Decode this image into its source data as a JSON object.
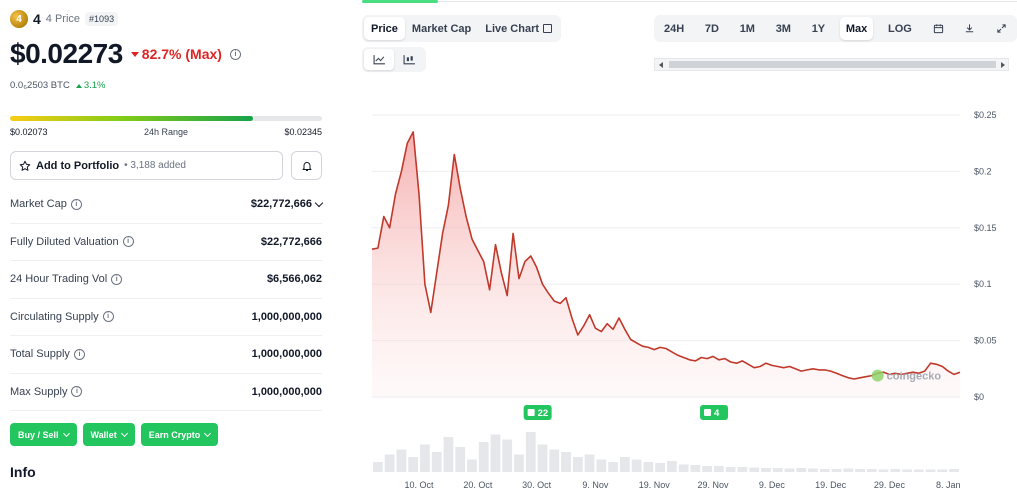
{
  "coin": {
    "logo_letter": "4",
    "name": "4",
    "sub": "4 Price",
    "rank": "#1093",
    "price": "$0.02273",
    "change": "82.7% (Max)",
    "btc_price": "0.0₆2503 BTC",
    "btc_change": "3.1%"
  },
  "range": {
    "low": "$0.02073",
    "label": "24h Range",
    "high": "$0.02345",
    "position_pct": 78
  },
  "portfolio": {
    "label": "Add to Portfolio",
    "count": "• 3,188 added"
  },
  "stats": [
    {
      "label": "Market Cap",
      "value": "$22,772,666"
    },
    {
      "label": "Fully Diluted Valuation",
      "value": "$22,772,666"
    },
    {
      "label": "24 Hour Trading Vol",
      "value": "$6,566,062"
    },
    {
      "label": "Circulating Supply",
      "value": "1,000,000,000"
    },
    {
      "label": "Total Supply",
      "value": "1,000,000,000"
    },
    {
      "label": "Max Supply",
      "value": "1,000,000,000"
    }
  ],
  "actions": [
    "Buy / Sell",
    "Wallet",
    "Earn Crypto"
  ],
  "info_heading": "Info",
  "chart_tabs": [
    "Price",
    "Market Cap",
    "Live Chart"
  ],
  "range_tabs": [
    "24H",
    "7D",
    "1M",
    "3M",
    "1Y",
    "Max",
    "LOG"
  ],
  "active_range": "Max",
  "colors": {
    "accent_green": "#22c55e",
    "down_red": "#dc2626",
    "line_red": "#c0392b"
  },
  "chart_data": {
    "type": "area",
    "title": "",
    "xlabel": "",
    "ylabel": "",
    "ylim": [
      0,
      0.25
    ],
    "y_ticks": [
      "$0.25",
      "$0.2",
      "$0.15",
      "$0.1",
      "$0.05",
      "$0"
    ],
    "y_tick_values": [
      0.25,
      0.2,
      0.15,
      0.1,
      0.05,
      0
    ],
    "x_ticks": [
      "10. Oct",
      "20. Oct",
      "30. Oct",
      "9. Nov",
      "19. Nov",
      "29. Nov",
      "9. Dec",
      "19. Dec",
      "29. Dec",
      "8. Jan"
    ],
    "x_tick_days": [
      10,
      20,
      30,
      40,
      50,
      60,
      70,
      80,
      90,
      100
    ],
    "x_range_days": [
      2,
      102
    ],
    "series": [
      {
        "values": [
          [
            2,
            0.131
          ],
          [
            3,
            0.132
          ],
          [
            4,
            0.16
          ],
          [
            5,
            0.15
          ],
          [
            6,
            0.18
          ],
          [
            7,
            0.2
          ],
          [
            8,
            0.225
          ],
          [
            9,
            0.235
          ],
          [
            10,
            0.18
          ],
          [
            11,
            0.1
          ],
          [
            12,
            0.075
          ],
          [
            13,
            0.11
          ],
          [
            14,
            0.145
          ],
          [
            15,
            0.17
          ],
          [
            16,
            0.215
          ],
          [
            17,
            0.185
          ],
          [
            18,
            0.16
          ],
          [
            19,
            0.14
          ],
          [
            20,
            0.13
          ],
          [
            21,
            0.12
          ],
          [
            22,
            0.095
          ],
          [
            23,
            0.135
          ],
          [
            24,
            0.11
          ],
          [
            25,
            0.09
          ],
          [
            26,
            0.145
          ],
          [
            27,
            0.105
          ],
          [
            28,
            0.12
          ],
          [
            29,
            0.125
          ],
          [
            30,
            0.115
          ],
          [
            31,
            0.1
          ],
          [
            32,
            0.092
          ],
          [
            33,
            0.085
          ],
          [
            34,
            0.083
          ],
          [
            35,
            0.088
          ],
          [
            36,
            0.07
          ],
          [
            37,
            0.055
          ],
          [
            38,
            0.063
          ],
          [
            39,
            0.073
          ],
          [
            40,
            0.061
          ],
          [
            41,
            0.058
          ],
          [
            42,
            0.065
          ],
          [
            43,
            0.06
          ],
          [
            44,
            0.07
          ],
          [
            45,
            0.06
          ],
          [
            46,
            0.051
          ],
          [
            47,
            0.048
          ],
          [
            48,
            0.045
          ],
          [
            49,
            0.044
          ],
          [
            50,
            0.042
          ],
          [
            51,
            0.044
          ],
          [
            52,
            0.043
          ],
          [
            53,
            0.04
          ],
          [
            54,
            0.037
          ],
          [
            55,
            0.035
          ],
          [
            56,
            0.033
          ],
          [
            57,
            0.032
          ],
          [
            58,
            0.035
          ],
          [
            59,
            0.034
          ],
          [
            60,
            0.036
          ],
          [
            61,
            0.033
          ],
          [
            62,
            0.034
          ],
          [
            63,
            0.031
          ],
          [
            64,
            0.03
          ],
          [
            65,
            0.032
          ],
          [
            66,
            0.029
          ],
          [
            67,
            0.026
          ],
          [
            68,
            0.027
          ],
          [
            69,
            0.03
          ],
          [
            70,
            0.028
          ],
          [
            71,
            0.027
          ],
          [
            72,
            0.026
          ],
          [
            73,
            0.027
          ],
          [
            74,
            0.025
          ],
          [
            75,
            0.023
          ],
          [
            76,
            0.024
          ],
          [
            77,
            0.025
          ],
          [
            78,
            0.024
          ],
          [
            79,
            0.024
          ],
          [
            80,
            0.023
          ],
          [
            81,
            0.021
          ],
          [
            82,
            0.019
          ],
          [
            83,
            0.017
          ],
          [
            84,
            0.016
          ],
          [
            85,
            0.017
          ],
          [
            86,
            0.018
          ],
          [
            87,
            0.019
          ],
          [
            88,
            0.021
          ],
          [
            89,
            0.022
          ],
          [
            90,
            0.02
          ],
          [
            91,
            0.021
          ],
          [
            92,
            0.02
          ],
          [
            93,
            0.021
          ],
          [
            94,
            0.022
          ],
          [
            95,
            0.021
          ],
          [
            96,
            0.023
          ],
          [
            97,
            0.03
          ],
          [
            98,
            0.029
          ],
          [
            99,
            0.027
          ],
          [
            100,
            0.023
          ],
          [
            101,
            0.02
          ],
          [
            102,
            0.022
          ]
        ]
      }
    ],
    "event_markers": [
      {
        "day": 30,
        "label": "22"
      },
      {
        "day": 60,
        "label": "4"
      }
    ],
    "volume": [
      0.2,
      0.35,
      0.45,
      0.3,
      0.55,
      0.4,
      0.7,
      0.5,
      0.25,
      0.6,
      0.75,
      0.65,
      0.35,
      0.8,
      0.55,
      0.45,
      0.4,
      0.3,
      0.35,
      0.25,
      0.2,
      0.3,
      0.25,
      0.2,
      0.18,
      0.22,
      0.15,
      0.14,
      0.12,
      0.12,
      0.1,
      0.1,
      0.09,
      0.08,
      0.08,
      0.07,
      0.08,
      0.07,
      0.06,
      0.06,
      0.07,
      0.06,
      0.06,
      0.05,
      0.06,
      0.05,
      0.05,
      0.05,
      0.05,
      0.06
    ],
    "grid": true,
    "watermark": "coingecko"
  }
}
